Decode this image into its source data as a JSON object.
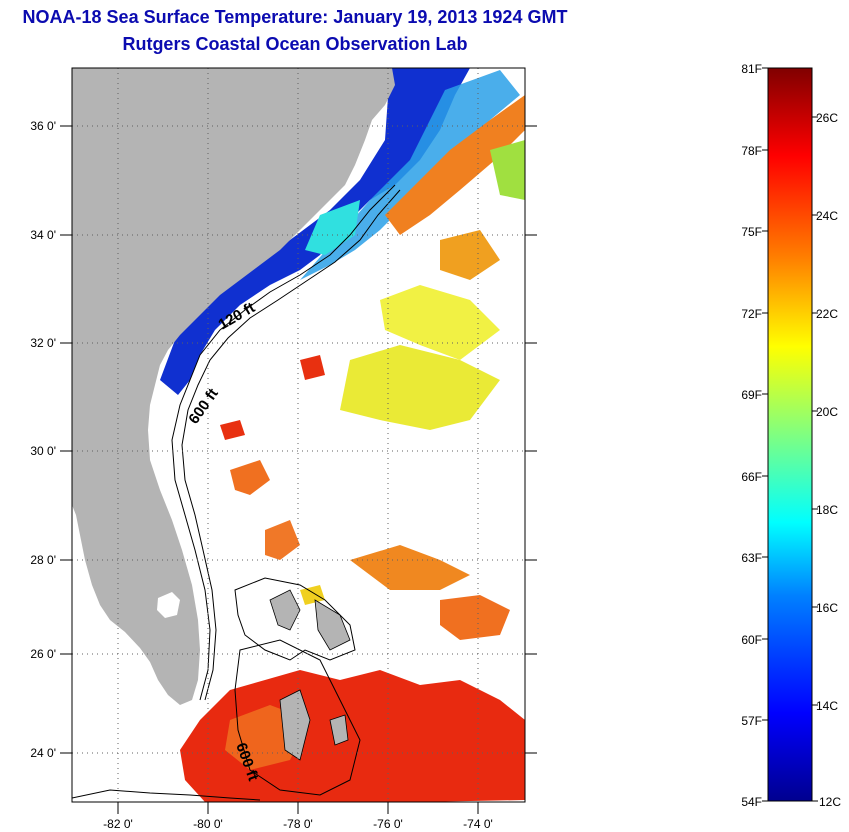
{
  "header": {
    "title": "NOAA-18 Sea Surface Temperature:  January 19, 2013 1924 GMT",
    "subtitle": "Rutgers Coastal Ocean Observation Lab"
  },
  "map": {
    "lat_labels": [
      "36 0'",
      "34 0'",
      "32 0'",
      "30 0'",
      "28 0'",
      "26 0'",
      "24 0'"
    ],
    "lon_labels": [
      "-82 0'",
      "-80 0'",
      "-78 0'",
      "-76 0'",
      "-74 0'"
    ],
    "contour_labels": [
      "120 ft",
      "600 ft",
      "600 ft"
    ]
  },
  "colorbar": {
    "fahrenheit_labels": [
      "81F",
      "78F",
      "75F",
      "72F",
      "69F",
      "66F",
      "63F",
      "60F",
      "57F",
      "54F"
    ],
    "celsius_labels": [
      "26C",
      "24C",
      "22C",
      "20C",
      "18C",
      "16C",
      "14C",
      "12C"
    ]
  },
  "colors": {
    "land": "#b4b4b4",
    "title": "#0b0bb0",
    "cold": "#0a1aa8",
    "warm": "#e82010"
  }
}
